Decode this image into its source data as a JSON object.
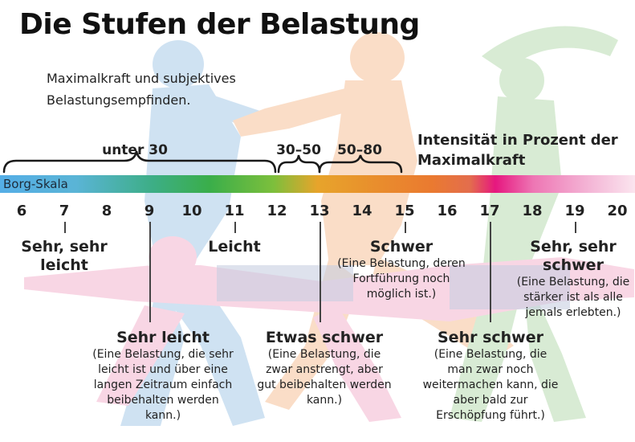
{
  "title": "Die Stufen der Belastung",
  "subtitle": "Maximalkraft und subjektives Belastungsempfinden.",
  "intensity_label": "Intensität in Prozent der Maximalkraft",
  "ranges": [
    {
      "label": "unter 30"
    },
    {
      "label": "30–50"
    },
    {
      "label": "50–80"
    }
  ],
  "scale_label": "Borg-Skala",
  "scale_numbers": [
    "6",
    "7",
    "8",
    "9",
    "10",
    "11",
    "12",
    "13",
    "14",
    "15",
    "16",
    "17",
    "18",
    "19",
    "20"
  ],
  "levels": [
    {
      "heading": "Sehr, sehr leicht",
      "text": ""
    },
    {
      "heading": "Leicht",
      "text": ""
    },
    {
      "heading": "Schwer",
      "text": "(Eine Belastung, deren Fortführung noch möglich ist.)"
    },
    {
      "heading": "Sehr, sehr schwer",
      "text": "(Eine Belastung, die stärker ist als alle jemals erlebten.)"
    },
    {
      "heading": "Sehr leicht",
      "text": "(Eine Belastung, die sehr leicht ist und über eine langen Zeitraum einfach beibehalten werden kann.)"
    },
    {
      "heading": "Etwas schwer",
      "text": "(Eine Belastung, die zwar anstrengt, aber gut beibehalten werden kann.)"
    },
    {
      "heading": "Sehr schwer",
      "text": "(Eine Belastung, die man zwar noch weitermachen kann, die aber bald zur Erschöpfung führt.)"
    }
  ],
  "colors": {
    "bar_start": "#55aee6",
    "bar_green": "#3aae4a",
    "bar_orange": "#ea7a30",
    "bar_pink": "#e6177f",
    "figure_blue": "#a9cbe8",
    "figure_orange": "#f6c39a",
    "figure_green": "#b9dcb1",
    "figure_pink": "#f4b6cf"
  }
}
